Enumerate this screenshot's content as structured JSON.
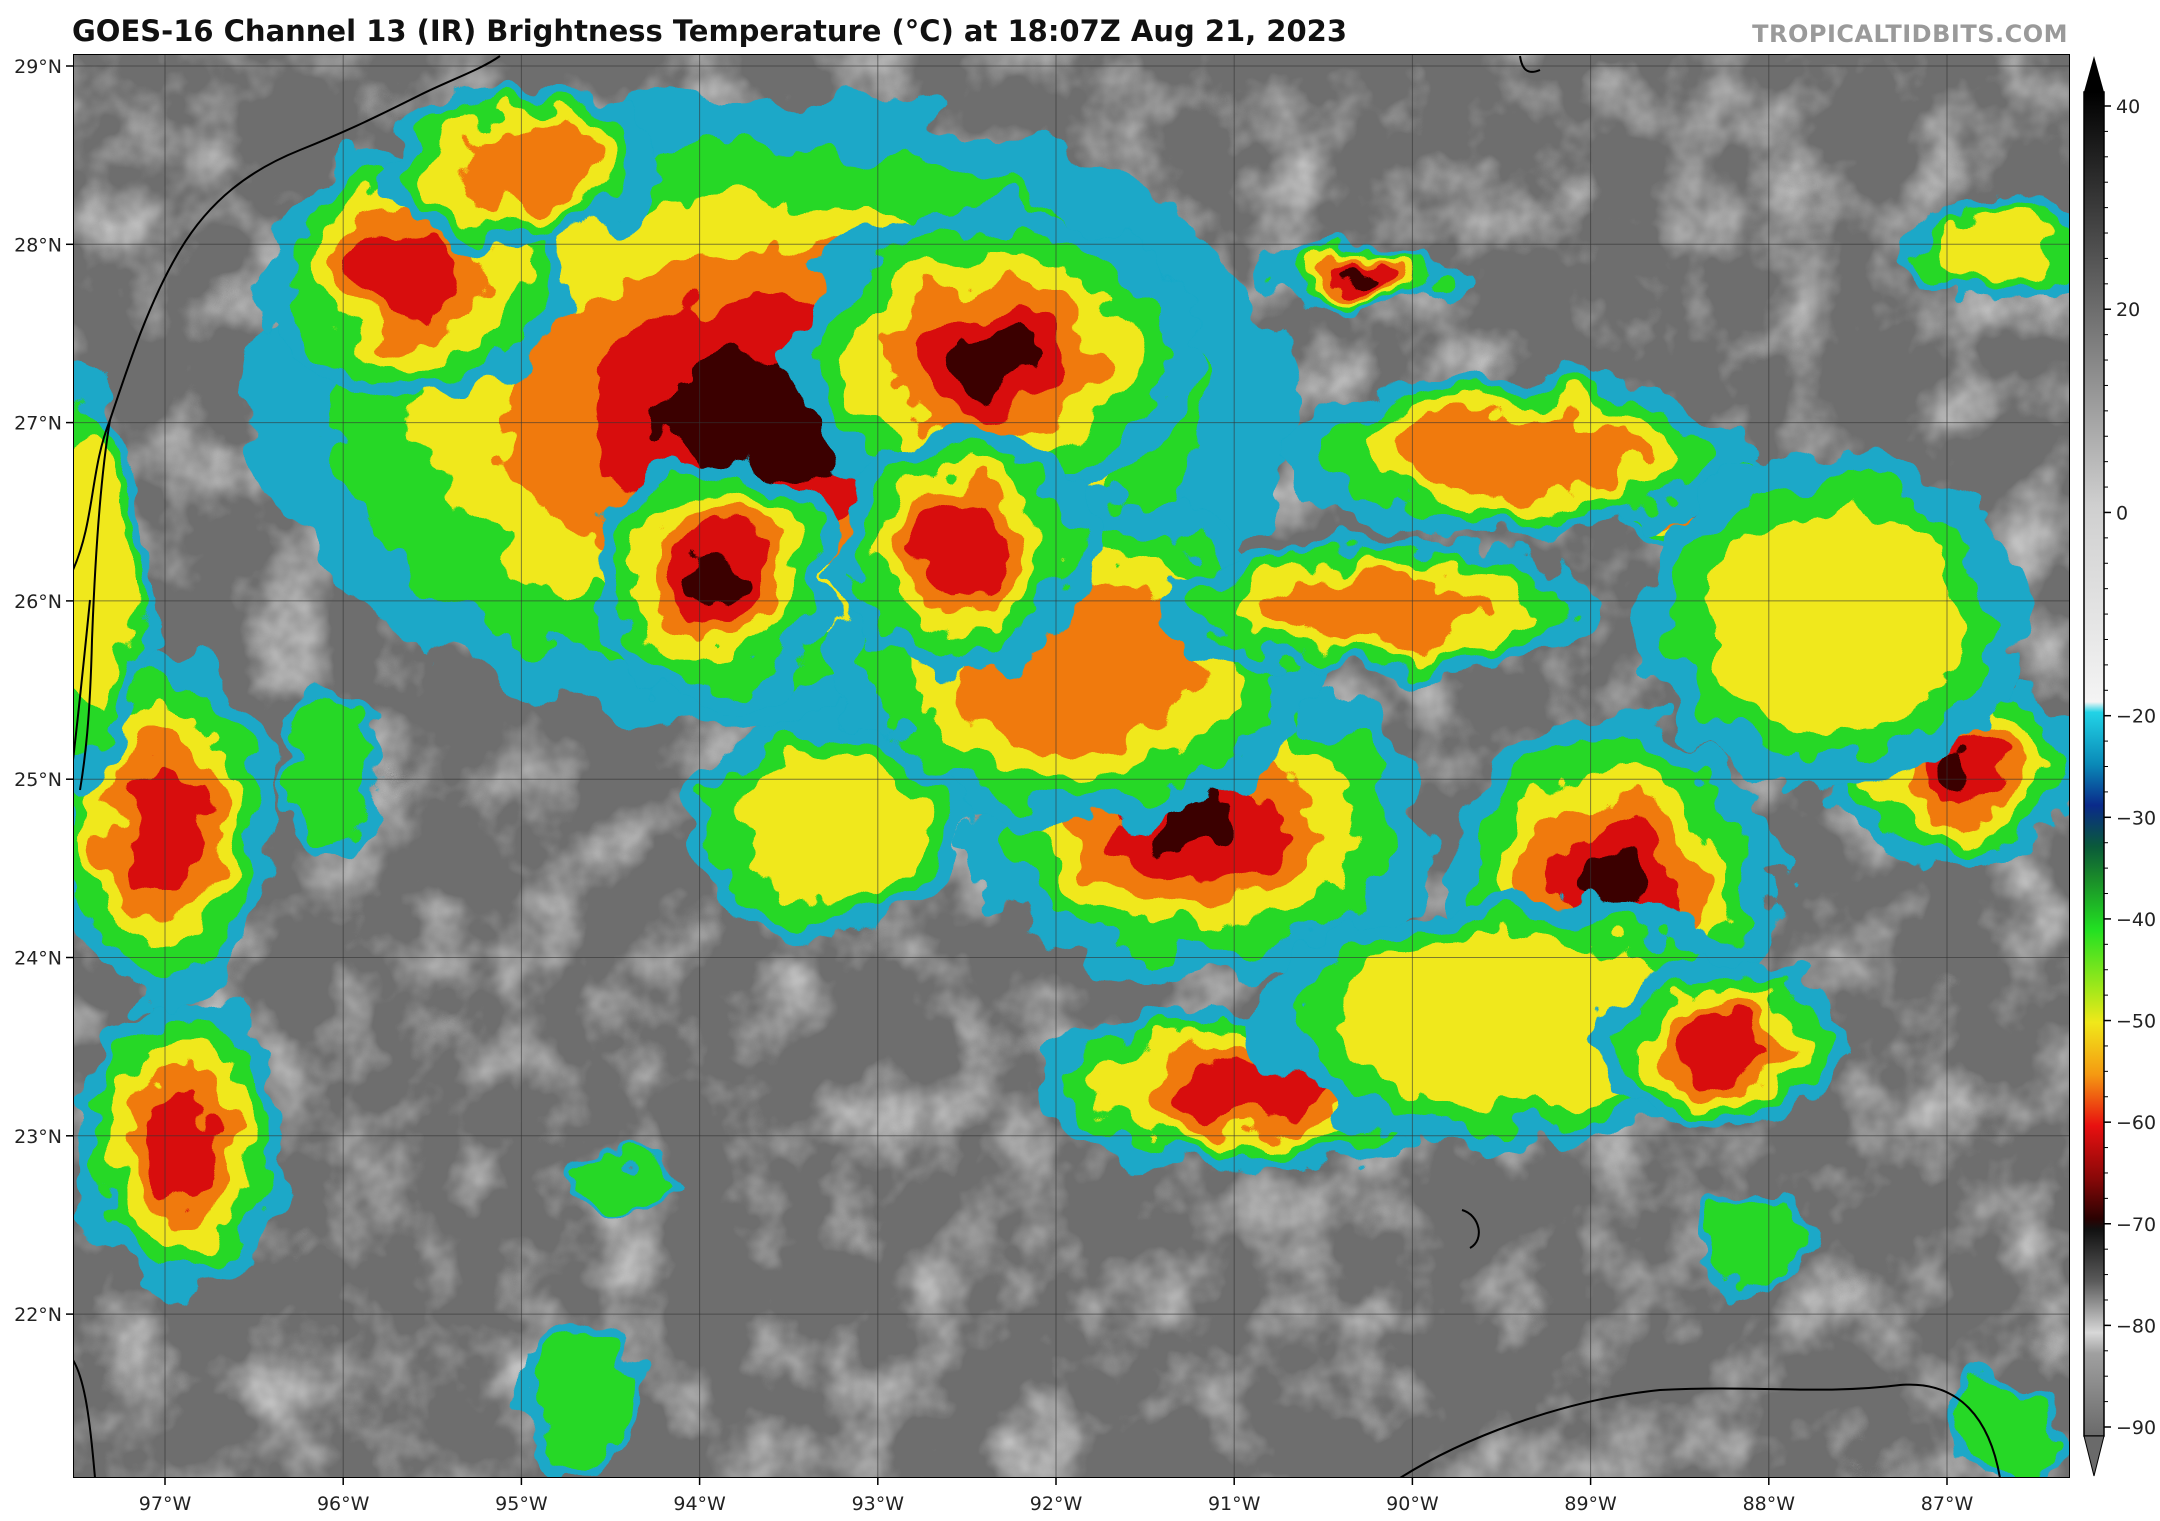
{
  "title": "GOES-16 Channel 13 (IR) Brightness Temperature (°C) at 18:07Z Aug 21, 2023",
  "watermark": "TROPICALTIDBITS.COM",
  "map": {
    "lat_labels": [
      "29°N",
      "28°N",
      "27°N",
      "26°N",
      "25°N",
      "24°N",
      "23°N",
      "22°N"
    ],
    "lon_labels": [
      "97°W",
      "96°W",
      "95°W",
      "94°W",
      "93°W",
      "92°W",
      "91°W",
      "90°W",
      "89°W",
      "88°W",
      "87°W"
    ],
    "gridlines": true,
    "background_color": "#6e6e6e"
  },
  "colorbar": {
    "unit": "°C",
    "range": [
      -90,
      40
    ],
    "ticks": [
      "40",
      "20",
      "0",
      "−20",
      "−30",
      "−40",
      "−50",
      "−60",
      "−70",
      "−80",
      "−90"
    ],
    "palette": [
      {
        "t": 40,
        "color": "#000000"
      },
      {
        "t": 32,
        "color": "#2a2a2a"
      },
      {
        "t": 0,
        "color": "#cfcfcf"
      },
      {
        "t": -19,
        "color": "#f4f4f4"
      },
      {
        "t": -20,
        "color": "#22d3e6"
      },
      {
        "t": -25,
        "color": "#0a8ab8"
      },
      {
        "t": -29,
        "color": "#0a2a8a"
      },
      {
        "t": -33,
        "color": "#0a5a3a"
      },
      {
        "t": -36,
        "color": "#1a8a2a"
      },
      {
        "t": -41,
        "color": "#22e022"
      },
      {
        "t": -47,
        "color": "#a8e81a"
      },
      {
        "t": -50,
        "color": "#f0e81a"
      },
      {
        "t": -55,
        "color": "#f59a12"
      },
      {
        "t": -60,
        "color": "#e81010"
      },
      {
        "t": -65,
        "color": "#8a0808"
      },
      {
        "t": -69,
        "color": "#2a0202"
      },
      {
        "t": -70,
        "color": "#111111"
      },
      {
        "t": -75,
        "color": "#5a5a5a"
      },
      {
        "t": -80,
        "color": "#d8d8d8"
      },
      {
        "t": -82,
        "color": "#a0a0a0"
      },
      {
        "t": -90,
        "color": "#6a6a6a"
      }
    ]
  }
}
